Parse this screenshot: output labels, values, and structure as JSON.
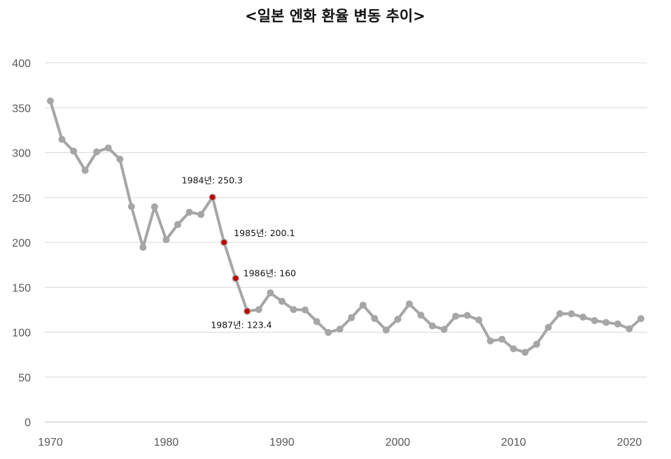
{
  "chart_data": {
    "type": "line",
    "title": "<일본 엔화 환율 변동 추이>",
    "xlabel": "",
    "ylabel": "",
    "xlim": [
      1970,
      2021
    ],
    "ylim": [
      0,
      400
    ],
    "xticks": [
      1970,
      1980,
      1990,
      2000,
      2010,
      2020
    ],
    "yticks": [
      0,
      50,
      100,
      150,
      200,
      250,
      300,
      350,
      400
    ],
    "grid": true,
    "legend": "none",
    "colors": {
      "line": "#a6a6a6",
      "highlight": "#c00000"
    },
    "series": [
      {
        "x": [
          1970,
          1971,
          1972,
          1973,
          1974,
          1975,
          1976,
          1977,
          1978,
          1979,
          1980,
          1981,
          1982,
          1983,
          1984,
          1985,
          1986,
          1987,
          1988,
          1989,
          1990,
          1991,
          1992,
          1993,
          1994,
          1995,
          1996,
          1997,
          1998,
          1999,
          2000,
          2001,
          2002,
          2003,
          2004,
          2005,
          2006,
          2007,
          2008,
          2009,
          2010,
          2011,
          2012,
          2013,
          2014,
          2015,
          2016,
          2017,
          2018,
          2019,
          2020,
          2021
        ],
        "values": [
          357.6,
          314.8,
          301.7,
          280.3,
          300.9,
          305.2,
          292.8,
          240.0,
          194.6,
          239.7,
          203.0,
          219.9,
          233.7,
          231.1,
          250.3,
          200.1,
          160,
          123.4,
          125.2,
          143.8,
          134.4,
          125.2,
          124.8,
          111.9,
          99.7,
          103.4,
          116.2,
          130.2,
          115.3,
          102.4,
          114.4,
          131.5,
          119.0,
          107.0,
          103.1,
          117.8,
          118.7,
          113.7,
          90.3,
          92.1,
          81.5,
          77.6,
          86.6,
          105.4,
          120.6,
          120.5,
          116.8,
          112.9,
          110.8,
          109.2,
          103.8,
          115.1
        ]
      }
    ],
    "annotations": [
      {
        "x": 1984,
        "y": 250.3,
        "text": "1984년: 250.3"
      },
      {
        "x": 1985,
        "y": 200.1,
        "text": "1985년: 200.1"
      },
      {
        "x": 1986,
        "y": 160,
        "text": "1986년: 160"
      },
      {
        "x": 1987,
        "y": 123.4,
        "text": "1987년: 123.4"
      }
    ]
  }
}
